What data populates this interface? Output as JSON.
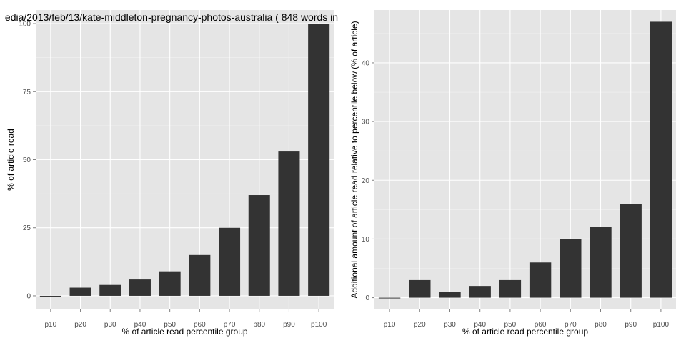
{
  "chart_data": [
    {
      "type": "bar",
      "title": "edia/2013/feb/13/kate-middleton-pregnancy-photos-australia ( 848 words in",
      "xlabel": "% of article read percentile group",
      "ylabel": "% of article read",
      "categories": [
        "p10",
        "p20",
        "p30",
        "p40",
        "p50",
        "p60",
        "p70",
        "p80",
        "p90",
        "p100"
      ],
      "values": [
        0,
        3,
        4,
        6,
        9,
        15,
        25,
        37,
        53,
        100
      ],
      "ylim": [
        -5,
        105
      ],
      "yticks": [
        0,
        25,
        50,
        75,
        100
      ],
      "ytick_labels": [
        "0",
        "25",
        "50",
        "75",
        "100"
      ],
      "grid": true,
      "bar_color": "#333333",
      "panel_color": "#e5e5e5"
    },
    {
      "type": "bar",
      "title": "",
      "xlabel": "% of article read percentile group",
      "ylabel": "Additional amount of article read relative to percentile below (% of article)",
      "categories": [
        "p10",
        "p20",
        "p30",
        "p40",
        "p50",
        "p60",
        "p70",
        "p80",
        "p90",
        "p100"
      ],
      "values": [
        0,
        3,
        1,
        2,
        3,
        6,
        10,
        12,
        16,
        47
      ],
      "ylim": [
        -2,
        49
      ],
      "yticks": [
        0,
        10,
        20,
        30,
        40
      ],
      "ytick_labels": [
        "0",
        "10",
        "20",
        "30",
        "40"
      ],
      "grid": true,
      "bar_color": "#333333",
      "panel_color": "#e5e5e5"
    }
  ]
}
